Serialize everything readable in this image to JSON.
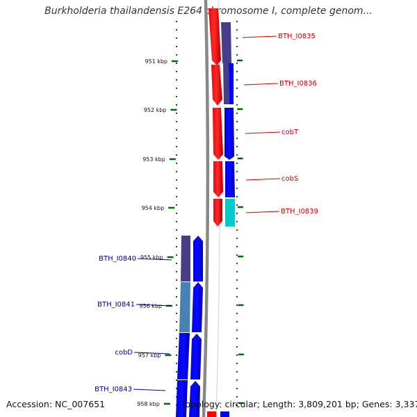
{
  "title": "Burkholderia thailandensis E264 chromosome I, complete genom...",
  "footer": {
    "accession": "Accession: NC_007651",
    "summary": "Topology: circular; Length: 3,809,201 bp; Genes: 3,337"
  },
  "axis": {
    "ticks": [
      "951 kbp",
      "952 kbp",
      "953 kbp",
      "954 kbp",
      "955 kbp",
      "956 kbp",
      "957 kbp",
      "958 kbp"
    ]
  },
  "genes_forward": [
    {
      "name": "BTH_I0835"
    },
    {
      "name": "BTH_I0836"
    },
    {
      "name": "cobT"
    },
    {
      "name": "cobS"
    },
    {
      "name": "BTH_I0839"
    }
  ],
  "genes_reverse": [
    {
      "name": "BTH_I0840"
    },
    {
      "name": "BTH_I0841"
    },
    {
      "name": "cobD"
    },
    {
      "name": "BTH_I0843"
    }
  ],
  "colors": {
    "forward_label": "#cc0000",
    "reverse_label": "#00008b",
    "red_feature": "#ff0000",
    "blue_feature": "#0000ff",
    "slate_feature": "#483d8b",
    "steel_feature": "#4682b4",
    "cyan_feature": "#00cccc",
    "backbone": "#888888",
    "tick": "#006400"
  }
}
